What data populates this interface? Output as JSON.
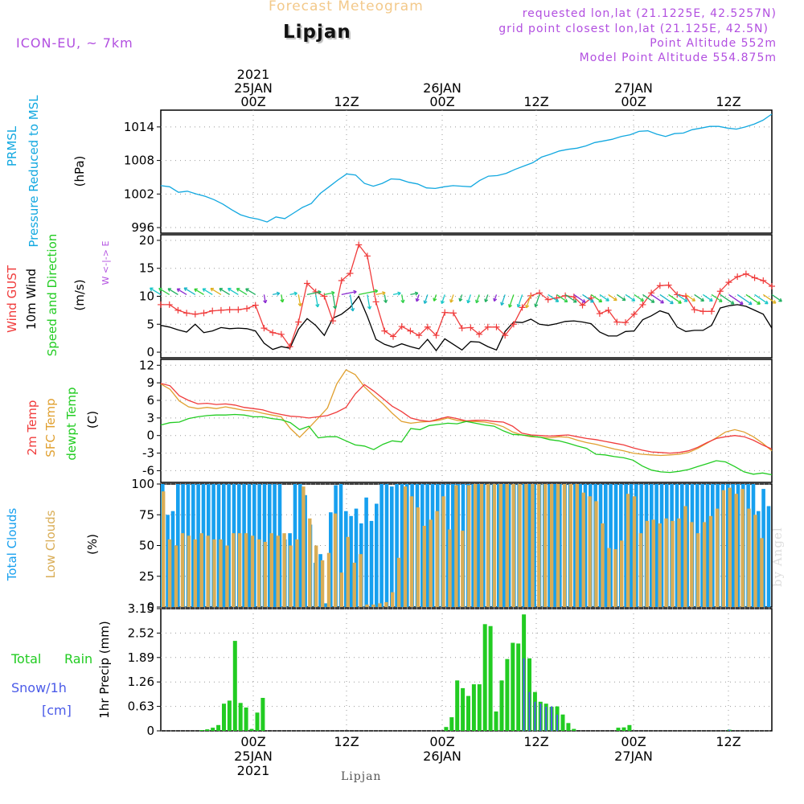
{
  "header": {
    "title": "Forecast Meteogram",
    "location": "Lipjan",
    "model": "ICON-EU, ~ 7km",
    "requested": "requested lon,lat (21.1225E, 42.5257N)",
    "closest": "grid point closest lon,lat (21.125E, 42.5N)",
    "alt": "Point Altitude 552m",
    "model_alt": "Model Point Altitude 554.875m",
    "footer": "Lipjan",
    "credit": "by Angel",
    "compass": "W <-|-> E"
  },
  "colors": {
    "title": "#f3c98a",
    "purple": "#b24fe0",
    "pressure": "#12a8e0",
    "gust": "#f03c3c",
    "wind": "#000000",
    "temp": "#f03c3c",
    "sfc": "#e0a030",
    "dew": "#22cc22",
    "cloud_total": "#17a0ef",
    "cloud_low": "#d9ad56",
    "rain": "#22cc22",
    "snow": "#4a5ae8"
  },
  "chart_data": [
    {
      "type": "line",
      "title": "PRMSL Pressure Reduced to MSL",
      "ylabel": "(hPa)",
      "ylim": [
        995,
        1017
      ],
      "yticks": [
        "996",
        "1002",
        "1008",
        "1014"
      ],
      "series": [
        {
          "name": "PRMSL",
          "values": [
            1003.5,
            1003.3,
            1002.3,
            1002.5,
            1002,
            1001.6,
            1001,
            1000.2,
            999.2,
            998.3,
            997.8,
            997.5,
            997.0,
            997.9,
            997.6,
            998.6,
            999.6,
            1000.3,
            1002.1,
            1003.3,
            1004.5,
            1005.6,
            1005.4,
            1003.9,
            1003.4,
            1003.9,
            1004.7,
            1004.6,
            1004.1,
            1003.8,
            1003.1,
            1003.0,
            1003.3,
            1003.5,
            1003.4,
            1003.3,
            1004.4,
            1005.2,
            1005.3,
            1005.7,
            1006.4,
            1007.0,
            1007.6,
            1008.6,
            1009.1,
            1009.7,
            1010.0,
            1010.2,
            1010.6,
            1011.2,
            1011.5,
            1011.8,
            1012.3,
            1012.6,
            1013.2,
            1013.3,
            1012.7,
            1012.3,
            1012.8,
            1012.9,
            1013.5,
            1013.8,
            1014.1,
            1014.1,
            1013.8,
            1013.6,
            1014.0,
            1014.5,
            1015.2,
            1016.3
          ]
        }
      ]
    },
    {
      "type": "line",
      "title": "Wind GUST / 10m Wind Speed and Direction",
      "ylabel": "(m/s)",
      "ylim": [
        -1,
        21
      ],
      "yticks": [
        "0",
        "5",
        "10",
        "15",
        "20"
      ],
      "series": [
        {
          "name": "Wind GUST",
          "values": [
            8.5,
            8.5,
            7.5,
            7.0,
            6.8,
            7.0,
            7.4,
            7.5,
            7.6,
            7.6,
            7.8,
            8.4,
            4.3,
            3.5,
            3.2,
            1.0,
            5.4,
            12.3,
            10.8,
            10.0,
            5.6,
            12.8,
            14.1,
            19.2,
            17.2,
            9.0,
            3.8,
            2.8,
            4.6,
            3.8,
            3.0,
            4.5,
            3.0,
            7.1,
            7.0,
            4.3,
            4.4,
            3.2,
            4.5,
            4.5,
            3.0,
            5.0,
            8.0,
            10.1,
            10.6,
            9.4,
            9.7,
            10.1,
            9.9,
            8.4,
            9.7,
            6.9,
            7.5,
            5.4,
            5.3,
            6.8,
            8.5,
            10.6,
            11.9,
            12.0,
            10.3,
            10.0,
            7.6,
            7.3,
            7.3,
            10.9,
            12.5,
            13.5,
            14.0,
            13.3,
            12.8,
            11.8
          ]
        },
        {
          "name": "10m Wind",
          "values": [
            4.8,
            4.5,
            4.0,
            3.6,
            5.0,
            3.5,
            3.8,
            4.4,
            4.2,
            4.3,
            4.2,
            3.8,
            1.6,
            0.5,
            1.0,
            0.7,
            4.1,
            6.0,
            4.8,
            3.0,
            6.1,
            6.8,
            8.0,
            10.0,
            6.4,
            2.3,
            1.4,
            0.9,
            1.5,
            1.0,
            0.6,
            2.3,
            0.3,
            2.4,
            1.4,
            0.4,
            1.9,
            1.8,
            1.0,
            0.4,
            3.7,
            5.4,
            5.3,
            5.9,
            5.0,
            4.8,
            5.1,
            5.5,
            5.6,
            5.4,
            5.1,
            3.6,
            2.9,
            2.9,
            3.7,
            3.8,
            5.8,
            6.5,
            7.4,
            6.9,
            4.5,
            3.7,
            3.9,
            3.9,
            4.8,
            7.9,
            8.3,
            8.5,
            8.2,
            7.5,
            6.8,
            4.3
          ]
        }
      ]
    },
    {
      "type": "line",
      "title": "2m Temp / SFC Temp / dewpt Temp",
      "ylabel": "(C)",
      "ylim": [
        -8,
        13
      ],
      "yticks": [
        "-6",
        "-3",
        "0",
        "3",
        "6",
        "9",
        "12"
      ],
      "series": [
        {
          "name": "2m Temp",
          "values": [
            8.9,
            8.5,
            6.8,
            6.0,
            5.4,
            5.5,
            5.3,
            5.4,
            5.2,
            4.8,
            4.6,
            4.4,
            3.9,
            3.6,
            3.3,
            3.2,
            3.0,
            3.2,
            3.4,
            4.0,
            4.8,
            7.1,
            8.7,
            7.6,
            6.3,
            5.0,
            4.1,
            3.0,
            2.6,
            2.4,
            2.8,
            3.2,
            2.9,
            2.5,
            2.6,
            2.6,
            2.4,
            2.3,
            1.6,
            0.4,
            0.1,
            0.0,
            -0.1,
            0.0,
            0.1,
            -0.2,
            -0.5,
            -0.7,
            -1.0,
            -1.3,
            -1.6,
            -2.1,
            -2.5,
            -2.8,
            -2.9,
            -3.0,
            -2.9,
            -2.6,
            -2.0,
            -1.2,
            -0.5,
            -0.2,
            -0.0,
            -0.2,
            -0.8,
            -1.6,
            -2.3
          ]
        },
        {
          "name": "SFC Temp",
          "values": [
            8.8,
            7.9,
            5.9,
            4.9,
            4.6,
            4.8,
            4.6,
            4.9,
            4.6,
            4.3,
            4.2,
            3.8,
            3.5,
            3.2,
            1.2,
            -0.3,
            1.3,
            3.0,
            4.7,
            8.8,
            11.2,
            10.4,
            8.3,
            6.8,
            5.4,
            3.8,
            2.4,
            2.1,
            2.3,
            2.4,
            2.6,
            3.0,
            2.6,
            2.4,
            2.4,
            2.3,
            2.0,
            1.5,
            0.6,
            0.1,
            -0.2,
            -0.3,
            -0.4,
            -0.2,
            -0.3,
            -0.8,
            -1.2,
            -1.5,
            -1.9,
            -2.3,
            -2.6,
            -3.0,
            -3.2,
            -3.3,
            -3.4,
            -3.3,
            -3.2,
            -2.9,
            -2.2,
            -1.3,
            -0.4,
            0.6,
            1.0,
            0.6,
            -0.2,
            -1.3,
            -2.6
          ]
        },
        {
          "name": "dewpt Temp",
          "values": [
            1.8,
            2.2,
            2.3,
            2.9,
            3.2,
            3.4,
            3.5,
            3.5,
            3.6,
            3.5,
            3.2,
            3.2,
            2.9,
            2.7,
            2.2,
            1.0,
            1.6,
            -0.4,
            -0.2,
            -0.2,
            -0.9,
            -1.6,
            -1.8,
            -2.4,
            -1.5,
            -0.9,
            -1.1,
            1.2,
            1.0,
            1.7,
            1.9,
            2.1,
            2.0,
            2.4,
            2.1,
            1.8,
            1.6,
            0.8,
            0.2,
            0.1,
            -0.1,
            -0.3,
            -0.7,
            -0.9,
            -1.3,
            -1.8,
            -2.2,
            -3.2,
            -3.3,
            -3.6,
            -3.8,
            -4.2,
            -5.2,
            -5.9,
            -6.2,
            -6.3,
            -6.1,
            -5.8,
            -5.3,
            -4.8,
            -4.3,
            -4.5,
            -5.3,
            -6.2,
            -6.6,
            -6.4,
            -6.7
          ]
        }
      ]
    },
    {
      "type": "bar",
      "title": "Total Clouds / Low Clouds",
      "ylabel": "(%)",
      "ylim": [
        0,
        100
      ],
      "yticks": [
        "0",
        "25",
        "50",
        "75",
        "100"
      ],
      "series": [
        {
          "name": "Total Clouds",
          "values": [
            100,
            75,
            78,
            100,
            100,
            100,
            100,
            100,
            100,
            100,
            100,
            100,
            100,
            100,
            100,
            100,
            100,
            100,
            100,
            100,
            100,
            100,
            100,
            100,
            55,
            60,
            100,
            100,
            91,
            67,
            36,
            43,
            3,
            77,
            99,
            100,
            78,
            74,
            80,
            68,
            89,
            70,
            84,
            100,
            100,
            98,
            100,
            100,
            100,
            100,
            100,
            100,
            100,
            100,
            100,
            100,
            100,
            100,
            100,
            100,
            100,
            100,
            100,
            100,
            100,
            100,
            100,
            100,
            100,
            100,
            100,
            100,
            100,
            100,
            100,
            100,
            100,
            100,
            100,
            100,
            100,
            100,
            100,
            100,
            100,
            100,
            100,
            100,
            100,
            100,
            100,
            100,
            100,
            100,
            100,
            100,
            100,
            100,
            100,
            100,
            100,
            100,
            100,
            100,
            100,
            100,
            100,
            100,
            100,
            100,
            100,
            100,
            100,
            100,
            100,
            100,
            100,
            78,
            96,
            82
          ]
        },
        {
          "name": "Low Clouds",
          "values": [
            94,
            55,
            50,
            60,
            58,
            55,
            60,
            58,
            55,
            55,
            50,
            60,
            60,
            60,
            58,
            55,
            53,
            60,
            58,
            60,
            50,
            55,
            98,
            72,
            50,
            38,
            44,
            76,
            28,
            57,
            36,
            43,
            2,
            2,
            3,
            4,
            12,
            40,
            98,
            90,
            81,
            66,
            71,
            78,
            90,
            63,
            99,
            62,
            99,
            100,
            100,
            100,
            100,
            100,
            100,
            100,
            100,
            100,
            100,
            100,
            100,
            100,
            100,
            100,
            100,
            100,
            93,
            90,
            86,
            68,
            48,
            47,
            54,
            92,
            90,
            60,
            70,
            71,
            68,
            72,
            70,
            72,
            82,
            69,
            60,
            69,
            74,
            80,
            95,
            97,
            92,
            96,
            80,
            75,
            56,
            0
          ]
        }
      ]
    },
    {
      "type": "bar",
      "title": "1hr Precip (mm)",
      "ylabel": "1hr Precip (mm)",
      "ylim": [
        0,
        3.15
      ],
      "yticks": [
        "0",
        "0.63",
        "1.26",
        "1.89",
        "2.52",
        "3.15"
      ],
      "series": [
        {
          "name": "Total Rain",
          "values": [
            0,
            0,
            0,
            0,
            0,
            0,
            0,
            0.02,
            0.04,
            0.08,
            0.15,
            0.7,
            0.78,
            2.32,
            0.72,
            0.6,
            0.05,
            0.47,
            0.85,
            0,
            0,
            0,
            0,
            0,
            0,
            0,
            0,
            0,
            0,
            0,
            0,
            0,
            0,
            0,
            0,
            0,
            0,
            0,
            0,
            0,
            0,
            0,
            0,
            0,
            0,
            0,
            0,
            0,
            0,
            0,
            0,
            0.1,
            0.35,
            1.3,
            1.1,
            0.9,
            1.2,
            1.2,
            2.75,
            2.7,
            0.5,
            1.3,
            1.85,
            2.27,
            2.25,
            3.0,
            1.87,
            1.0,
            0.75,
            0.7,
            0.62,
            0.63,
            0.42,
            0.2,
            0.05,
            0,
            0,
            0,
            0,
            0,
            0,
            0,
            0.08,
            0.09,
            0.15,
            0,
            0,
            0,
            0,
            0,
            0,
            0,
            0,
            0,
            0,
            0,
            0,
            0,
            0,
            0,
            0,
            0,
            0.03,
            0,
            0,
            0,
            0,
            0,
            0,
            0
          ]
        },
        {
          "name": "Snow/1h",
          "values": [
            0,
            0,
            0,
            0,
            0,
            0,
            0,
            0,
            0,
            0,
            0,
            0,
            0,
            0,
            0,
            0,
            0,
            0,
            0,
            0,
            0,
            0,
            0,
            0,
            0,
            0,
            0,
            0,
            0,
            0,
            0,
            0,
            0,
            0,
            0,
            0,
            0,
            0,
            0,
            0,
            0,
            0,
            0,
            0,
            0,
            0,
            0,
            0,
            0,
            0,
            0,
            0,
            0,
            0,
            0,
            0,
            0,
            0,
            0,
            0,
            0,
            0,
            0,
            0,
            0,
            1.87,
            1.0,
            0.75,
            0.7,
            0.62,
            0.63,
            0.42,
            0,
            0,
            0,
            0,
            0,
            0,
            0,
            0,
            0,
            0,
            0,
            0,
            0,
            0,
            0,
            0,
            0,
            0,
            0,
            0,
            0,
            0,
            0,
            0,
            0,
            0,
            0,
            0,
            0,
            0,
            0.03,
            0,
            0,
            0,
            0,
            0,
            0,
            0
          ]
        }
      ]
    },
    {
      "type": "line",
      "title": "Time axis",
      "top_labels": [
        [
          "2021",
          "25JAN",
          "00Z"
        ],
        [
          "12Z"
        ],
        [
          "26JAN",
          "00Z"
        ],
        [
          "12Z"
        ],
        [
          "27JAN",
          "00Z"
        ],
        [
          "12Z"
        ]
      ],
      "bottom_labels": [
        [
          "00Z",
          "25JAN",
          "2021"
        ],
        [
          "12Z"
        ],
        [
          "00Z",
          "26JAN"
        ],
        [
          "12Z"
        ],
        [
          "00Z",
          "27JAN"
        ],
        [
          "12Z"
        ]
      ],
      "legend": {
        "pressure": [
          "PRMSL",
          "Pressure Reduced to MSL"
        ],
        "wind": [
          "Wind GUST",
          "10m Wind",
          "Speed and Direction"
        ],
        "temp": [
          "2m Temp",
          "SFC Temp",
          "dewpt Temp"
        ],
        "clouds": [
          "Total Clouds",
          "Low Clouds"
        ],
        "precip": [
          "Total",
          "Rain",
          "Snow/1h",
          "[cm]"
        ]
      }
    }
  ]
}
